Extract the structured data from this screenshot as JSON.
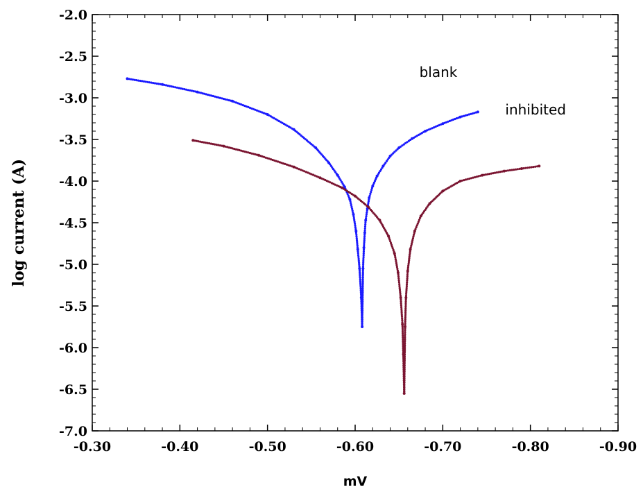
{
  "chart_data": {
    "type": "scatter",
    "title": "",
    "xlabel": "mV",
    "ylabel": "log current (A)",
    "xlim": [
      -0.3,
      -0.9
    ],
    "ylim": [
      -7.0,
      -2.0
    ],
    "x_reversed": true,
    "x_ticks": [
      "-0.30",
      "-0.40",
      "-0.50",
      "-0.60",
      "-0.70",
      "-0.80",
      "-0.90"
    ],
    "y_ticks": [
      "-2.0",
      "-2.5",
      "-3.0",
      "-3.5",
      "-4.0",
      "-4.5",
      "-5.0",
      "-5.5",
      "-6.0",
      "-6.5",
      "-7.0"
    ],
    "grid": false,
    "series": [
      {
        "name": "blank",
        "color": "#1a1aff",
        "x": [
          -0.34,
          -0.38,
          -0.42,
          -0.46,
          -0.5,
          -0.53,
          -0.555,
          -0.57,
          -0.58,
          -0.588,
          -0.594,
          -0.598,
          -0.601,
          -0.603,
          -0.605,
          -0.607,
          -0.608,
          -0.609,
          -0.61,
          -0.611,
          -0.612,
          -0.614,
          -0.616,
          -0.62,
          -0.625,
          -0.632,
          -0.64,
          -0.65,
          -0.665,
          -0.68,
          -0.7,
          -0.72,
          -0.74
        ],
        "y": [
          -2.77,
          -2.84,
          -2.93,
          -3.04,
          -3.2,
          -3.38,
          -3.6,
          -3.78,
          -3.93,
          -4.07,
          -4.22,
          -4.4,
          -4.6,
          -4.82,
          -5.05,
          -5.4,
          -5.75,
          -5.05,
          -4.8,
          -4.62,
          -4.47,
          -4.33,
          -4.2,
          -4.06,
          -3.94,
          -3.82,
          -3.7,
          -3.6,
          -3.49,
          -3.4,
          -3.31,
          -3.23,
          -3.17
        ]
      },
      {
        "name": "inhibited",
        "color": "#7a1430",
        "x": [
          -0.415,
          -0.45,
          -0.49,
          -0.53,
          -0.56,
          -0.585,
          -0.6,
          -0.615,
          -0.628,
          -0.638,
          -0.645,
          -0.649,
          -0.652,
          -0.654,
          -0.655,
          -0.656,
          -0.657,
          -0.658,
          -0.66,
          -0.663,
          -0.668,
          -0.675,
          -0.685,
          -0.7,
          -0.72,
          -0.745,
          -0.77,
          -0.79,
          -0.81
        ],
        "y": [
          -3.51,
          -3.58,
          -3.69,
          -3.83,
          -3.96,
          -4.08,
          -4.18,
          -4.31,
          -4.47,
          -4.66,
          -4.87,
          -5.1,
          -5.4,
          -5.72,
          -6.08,
          -6.55,
          -5.75,
          -5.4,
          -5.08,
          -4.82,
          -4.6,
          -4.42,
          -4.27,
          -4.12,
          -4.0,
          -3.93,
          -3.88,
          -3.85,
          -3.82
        ]
      }
    ],
    "annotations": [
      {
        "text": "blank",
        "x": -0.695,
        "y": -2.75
      },
      {
        "text": "inhibited",
        "x": -0.806,
        "y": -3.2
      }
    ]
  }
}
